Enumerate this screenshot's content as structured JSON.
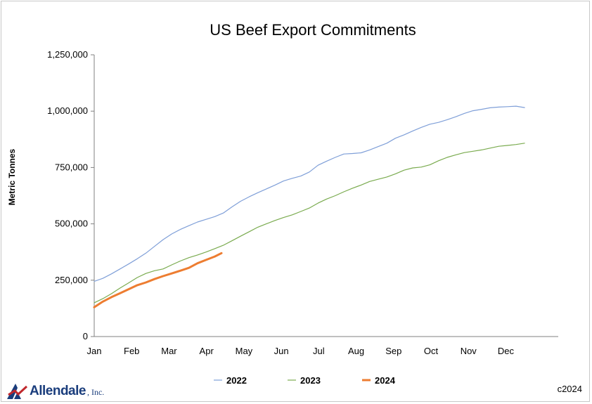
{
  "chart_data": {
    "type": "line",
    "title": "US Beef Export Commitments",
    "xlabel": "",
    "ylabel": "Metric Tonnes",
    "ylim": [
      0,
      1250000
    ],
    "yticks": [
      0,
      250000,
      500000,
      750000,
      1000000,
      1250000
    ],
    "ytick_labels": [
      "0",
      "250,000",
      "500,000",
      "750,000",
      "1,000,000",
      "1,250,000"
    ],
    "xlim_months": [
      0,
      12.4
    ],
    "month_labels": [
      "Jan",
      "Feb",
      "Mar",
      "Apr",
      "May",
      "Jun",
      "Jul",
      "Aug",
      "Sep",
      "Oct",
      "Nov",
      "Dec"
    ],
    "grid": false,
    "legend_position": "bottom",
    "series": [
      {
        "name": "2022",
        "color": "#7f9fd8",
        "points": [
          [
            0.0,
            245000
          ],
          [
            0.23,
            258000
          ],
          [
            0.46,
            278000
          ],
          [
            0.69,
            300000
          ],
          [
            0.92,
            322000
          ],
          [
            1.15,
            345000
          ],
          [
            1.38,
            370000
          ],
          [
            1.61,
            400000
          ],
          [
            1.84,
            430000
          ],
          [
            2.07,
            455000
          ],
          [
            2.3,
            475000
          ],
          [
            2.53,
            492000
          ],
          [
            2.76,
            508000
          ],
          [
            2.99,
            520000
          ],
          [
            3.22,
            532000
          ],
          [
            3.45,
            548000
          ],
          [
            3.68,
            575000
          ],
          [
            3.91,
            600000
          ],
          [
            4.14,
            620000
          ],
          [
            4.37,
            638000
          ],
          [
            4.6,
            655000
          ],
          [
            4.83,
            672000
          ],
          [
            5.06,
            690000
          ],
          [
            5.29,
            702000
          ],
          [
            5.52,
            712000
          ],
          [
            5.75,
            730000
          ],
          [
            5.98,
            760000
          ],
          [
            6.21,
            778000
          ],
          [
            6.44,
            795000
          ],
          [
            6.67,
            810000
          ],
          [
            6.9,
            812000
          ],
          [
            7.13,
            815000
          ],
          [
            7.36,
            828000
          ],
          [
            7.59,
            843000
          ],
          [
            7.82,
            858000
          ],
          [
            8.05,
            880000
          ],
          [
            8.28,
            895000
          ],
          [
            8.51,
            912000
          ],
          [
            8.74,
            928000
          ],
          [
            8.97,
            942000
          ],
          [
            9.2,
            950000
          ],
          [
            9.43,
            962000
          ],
          [
            9.66,
            975000
          ],
          [
            9.89,
            990000
          ],
          [
            10.12,
            1002000
          ],
          [
            10.35,
            1008000
          ],
          [
            10.58,
            1015000
          ],
          [
            10.81,
            1018000
          ],
          [
            11.04,
            1020000
          ],
          [
            11.27,
            1022000
          ],
          [
            11.5,
            1016000
          ]
        ]
      },
      {
        "name": "2023",
        "color": "#7aab4f",
        "points": [
          [
            0.0,
            150000
          ],
          [
            0.23,
            168000
          ],
          [
            0.46,
            190000
          ],
          [
            0.69,
            215000
          ],
          [
            0.92,
            238000
          ],
          [
            1.15,
            262000
          ],
          [
            1.38,
            280000
          ],
          [
            1.61,
            292000
          ],
          [
            1.84,
            300000
          ],
          [
            2.07,
            318000
          ],
          [
            2.3,
            335000
          ],
          [
            2.53,
            350000
          ],
          [
            2.76,
            362000
          ],
          [
            2.99,
            375000
          ],
          [
            3.22,
            390000
          ],
          [
            3.45,
            405000
          ],
          [
            3.68,
            425000
          ],
          [
            3.91,
            445000
          ],
          [
            4.14,
            465000
          ],
          [
            4.37,
            485000
          ],
          [
            4.6,
            500000
          ],
          [
            4.83,
            515000
          ],
          [
            5.06,
            528000
          ],
          [
            5.29,
            540000
          ],
          [
            5.52,
            555000
          ],
          [
            5.75,
            570000
          ],
          [
            5.98,
            592000
          ],
          [
            6.21,
            610000
          ],
          [
            6.44,
            625000
          ],
          [
            6.67,
            642000
          ],
          [
            6.9,
            658000
          ],
          [
            7.13,
            672000
          ],
          [
            7.36,
            688000
          ],
          [
            7.59,
            698000
          ],
          [
            7.82,
            708000
          ],
          [
            8.05,
            722000
          ],
          [
            8.28,
            738000
          ],
          [
            8.51,
            748000
          ],
          [
            8.74,
            752000
          ],
          [
            8.97,
            762000
          ],
          [
            9.2,
            780000
          ],
          [
            9.43,
            795000
          ],
          [
            9.66,
            806000
          ],
          [
            9.89,
            816000
          ],
          [
            10.12,
            822000
          ],
          [
            10.35,
            828000
          ],
          [
            10.58,
            836000
          ],
          [
            10.81,
            844000
          ],
          [
            11.04,
            848000
          ],
          [
            11.27,
            852000
          ],
          [
            11.5,
            858000
          ]
        ]
      },
      {
        "name": "2024",
        "color": "#ed7d31",
        "points": [
          [
            0.0,
            130000
          ],
          [
            0.23,
            155000
          ],
          [
            0.46,
            175000
          ],
          [
            0.69,
            192000
          ],
          [
            0.92,
            210000
          ],
          [
            1.15,
            228000
          ],
          [
            1.38,
            240000
          ],
          [
            1.61,
            255000
          ],
          [
            1.84,
            268000
          ],
          [
            2.07,
            280000
          ],
          [
            2.3,
            292000
          ],
          [
            2.53,
            305000
          ],
          [
            2.76,
            325000
          ],
          [
            2.99,
            340000
          ],
          [
            3.22,
            355000
          ],
          [
            3.4,
            370000
          ]
        ]
      }
    ]
  },
  "branding": {
    "logo_text": "Allendale",
    "logo_suffix": ", Inc.",
    "copyright": "c2024"
  }
}
